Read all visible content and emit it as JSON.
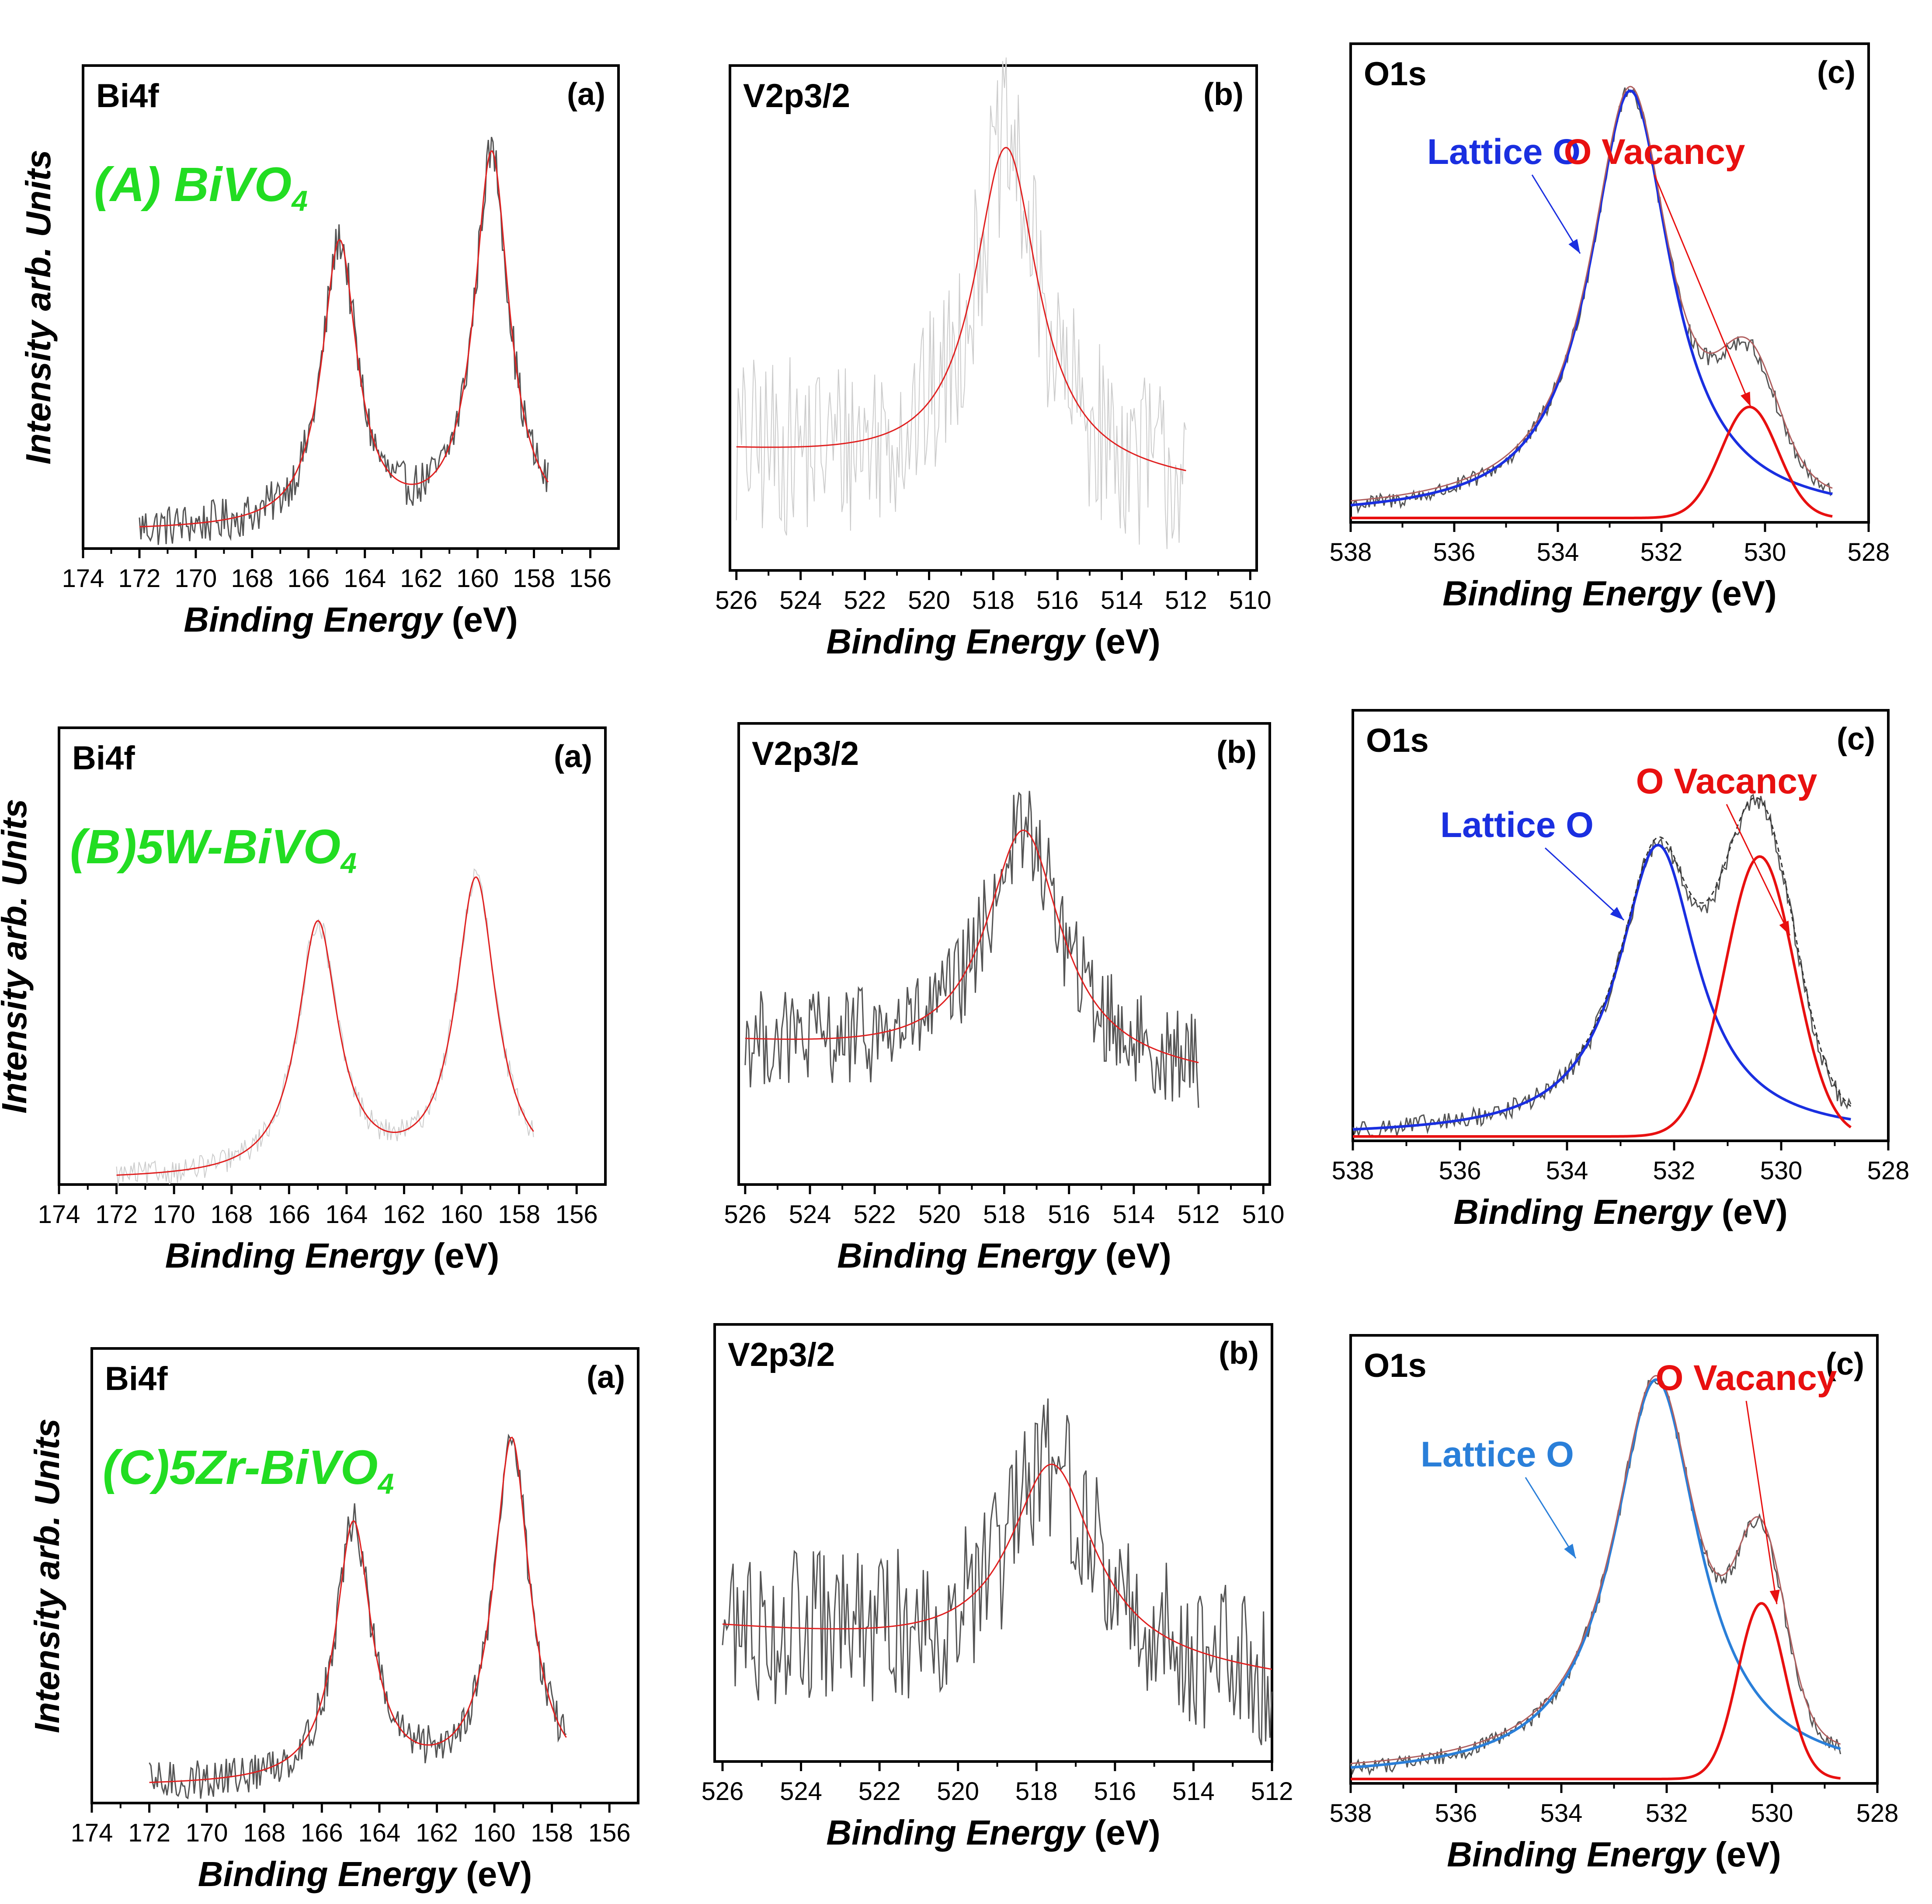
{
  "figure": {
    "colors": {
      "data": "#555555",
      "fit": "#e02020",
      "lattice": "#1a2fe0",
      "lattice_c": "#2a7fd9",
      "vacancy": "#e81010",
      "label": "#22dd22",
      "frame": "#000000"
    },
    "y_axis_label": "Intensity arb. Units",
    "x_axis_label_main": "Binding Energy",
    "x_axis_label_unit": "(eV)"
  },
  "chart_data": [
    {
      "id": "A-a",
      "type": "line",
      "row": "A",
      "col": "a",
      "title": "Bi4f",
      "panel_letter": "(a)",
      "sample": "(A) BiVO",
      "sample_sub": "4",
      "xlabel": "Binding Energy",
      "xunit": "(eV)",
      "ylabel": "Intensity arb. Units",
      "xlim": [
        174,
        155
      ],
      "ylim": [
        0,
        1.1
      ],
      "xticks": [
        174,
        172,
        170,
        168,
        166,
        164,
        162,
        160,
        158,
        156
      ],
      "noise": 0.05,
      "raw_range": [
        172,
        157.5
      ],
      "series": [
        {
          "name": "Raw data",
          "style": "raw"
        },
        {
          "name": "Fit",
          "style": "fit",
          "baseline": [
            0.03,
            0.03
          ],
          "peaks": [
            {
              "center": 164.9,
              "height": 0.66,
              "width": 0.75
            },
            {
              "center": 159.5,
              "height": 0.87,
              "width": 0.75
            }
          ],
          "range": [
            172,
            157.5
          ]
        }
      ]
    },
    {
      "id": "A-b",
      "type": "line",
      "row": "A",
      "col": "b",
      "title": "V2p3/2",
      "panel_letter": "(b)",
      "xlabel": "Binding Energy",
      "xunit": "(eV)",
      "xlim": [
        526.2,
        509.8
      ],
      "ylim": [
        0,
        1.1
      ],
      "xticks": [
        526,
        524,
        522,
        520,
        518,
        516,
        514,
        512,
        510
      ],
      "noise": 0.2,
      "raw_range": [
        526,
        512
      ],
      "series": [
        {
          "name": "Raw data",
          "style": "raw-faint"
        },
        {
          "name": "Fit",
          "style": "fit",
          "baseline": [
            0.25,
            0.18
          ],
          "peaks": [
            {
              "center": 517.6,
              "height": 0.72,
              "width": 1.2
            }
          ],
          "range": [
            526,
            512
          ]
        }
      ]
    },
    {
      "id": "A-c",
      "type": "line",
      "row": "A",
      "col": "c",
      "title": "O1s",
      "panel_letter": "(c)",
      "xlabel": "Binding Energy",
      "xunit": "(eV)",
      "xlim": [
        538,
        528
      ],
      "ylim": [
        0,
        1.1
      ],
      "xticks": [
        538,
        536,
        534,
        532,
        530,
        528
      ],
      "noise": 0.02,
      "raw_range": [
        538,
        528.7
      ],
      "annotations": [
        {
          "text": "Lattice O",
          "color": "lattice"
        },
        {
          "text": "O Vacancy",
          "color": "vacancy"
        }
      ],
      "series": [
        {
          "name": "Raw data",
          "style": "raw"
        },
        {
          "name": "Lattice O",
          "style": "lattice",
          "baseline": [
            0.0,
            0.0
          ],
          "peaks": [
            {
              "center": 532.6,
              "height": 1.0,
              "width": 0.95
            }
          ],
          "range": [
            538,
            528.7
          ]
        },
        {
          "name": "O Vacancy",
          "style": "vacancy",
          "baseline": [
            0.0,
            0.0
          ],
          "peaks": [
            {
              "center": 530.3,
              "height": 0.26,
              "width": 0.55,
              "gauss": true
            }
          ],
          "range": [
            538,
            528.7
          ]
        },
        {
          "name": "Envelope",
          "style": "envelope",
          "range": [
            538,
            528.7
          ]
        }
      ]
    },
    {
      "id": "B-a",
      "type": "line",
      "row": "B",
      "col": "a",
      "title": "Bi4f",
      "panel_letter": "(a)",
      "sample": "(B)5W-BiVO",
      "sample_sub": "4",
      "xlabel": "Binding Energy",
      "xunit": "(eV)",
      "ylabel": "Intensity arb. Units",
      "xlim": [
        174,
        155
      ],
      "ylim": [
        0,
        1.1
      ],
      "xticks": [
        174,
        172,
        170,
        168,
        166,
        164,
        162,
        160,
        158,
        156
      ],
      "noise": 0.03,
      "raw_range": [
        172,
        157.5
      ],
      "series": [
        {
          "name": "Raw data",
          "style": "raw-faint"
        },
        {
          "name": "Fit",
          "style": "fit",
          "baseline": [
            0.0,
            0.0
          ],
          "peaks": [
            {
              "center": 165.0,
              "height": 0.62,
              "width": 0.85
            },
            {
              "center": 159.5,
              "height": 0.73,
              "width": 0.85
            }
          ],
          "range": [
            172,
            157.5
          ]
        }
      ]
    },
    {
      "id": "B-b",
      "type": "line",
      "row": "B",
      "col": "b",
      "title": "V2p3/2",
      "panel_letter": "(b)",
      "xlabel": "Binding Energy",
      "xunit": "(eV)",
      "xlim": [
        526.2,
        509.8
      ],
      "ylim": [
        0,
        1.1
      ],
      "xticks": [
        526,
        524,
        522,
        520,
        518,
        516,
        514,
        512,
        510
      ],
      "noise": 0.12,
      "raw_range": [
        526,
        512
      ],
      "series": [
        {
          "name": "Raw data",
          "style": "raw"
        },
        {
          "name": "Fit",
          "style": "fit",
          "baseline": [
            0.33,
            0.25
          ],
          "peaks": [
            {
              "center": 517.4,
              "height": 0.57,
              "width": 1.4
            }
          ],
          "range": [
            526,
            512
          ]
        }
      ]
    },
    {
      "id": "B-c",
      "type": "line",
      "row": "B",
      "col": "c",
      "title": "O1s",
      "panel_letter": "(c)",
      "xlabel": "Binding Energy",
      "xunit": "(eV)",
      "xlim": [
        538,
        528
      ],
      "ylim": [
        0,
        1.1
      ],
      "xticks": [
        538,
        536,
        534,
        532,
        530,
        528
      ],
      "noise": 0.025,
      "raw_range": [
        538,
        528.7
      ],
      "annotations": [
        {
          "text": "Lattice  O",
          "color": "lattice"
        },
        {
          "text": "O Vacancy",
          "color": "vacancy"
        }
      ],
      "series": [
        {
          "name": "Raw data",
          "style": "raw"
        },
        {
          "name": "Lattice O",
          "style": "lattice",
          "baseline": [
            0.0,
            0.0
          ],
          "peaks": [
            {
              "center": 532.3,
              "height": 0.76,
              "width": 0.9
            }
          ],
          "range": [
            538,
            528.7
          ]
        },
        {
          "name": "O Vacancy",
          "style": "vacancy",
          "baseline": [
            0.0,
            0.0
          ],
          "peaks": [
            {
              "center": 530.4,
              "height": 0.73,
              "width": 0.65,
              "gauss": true
            }
          ],
          "range": [
            538,
            528.7
          ]
        },
        {
          "name": "Envelope",
          "style": "envelope-dash",
          "range": [
            533.8,
            528.7
          ]
        }
      ]
    },
    {
      "id": "C-a",
      "type": "line",
      "row": "C",
      "col": "a",
      "title": "Bi4f",
      "panel_letter": "(a)",
      "sample": "(C)5Zr-BiVO",
      "sample_sub": "4",
      "xlabel": "Binding Energy",
      "xunit": "(eV)",
      "ylabel": "Intensity arb. Units",
      "xlim": [
        174,
        155
      ],
      "ylim": [
        0,
        1.1
      ],
      "xticks": [
        174,
        172,
        170,
        168,
        166,
        164,
        162,
        160,
        158,
        156
      ],
      "noise": 0.05,
      "raw_range": [
        172,
        157.5
      ],
      "series": [
        {
          "name": "Raw data",
          "style": "raw"
        },
        {
          "name": "Fit",
          "style": "fit",
          "baseline": [
            0.03,
            0.03
          ],
          "peaks": [
            {
              "center": 164.9,
              "height": 0.64,
              "width": 0.75
            },
            {
              "center": 159.4,
              "height": 0.85,
              "width": 0.75
            }
          ],
          "range": [
            172,
            157.5
          ]
        }
      ]
    },
    {
      "id": "C-b",
      "type": "line",
      "row": "C",
      "col": "b",
      "title": "V2p3/2",
      "panel_letter": "(b)",
      "xlabel": "Binding Energy",
      "xunit": "(eV)",
      "xlim": [
        526.2,
        512
      ],
      "ylim": [
        0,
        1.1
      ],
      "xticks": [
        526,
        524,
        522,
        520,
        518,
        516,
        514,
        512
      ],
      "noise": 0.2,
      "raw_range": [
        526,
        512
      ],
      "series": [
        {
          "name": "Raw data",
          "style": "raw"
        },
        {
          "name": "Fit",
          "style": "fit",
          "baseline": [
            0.33,
            0.2
          ],
          "peaks": [
            {
              "center": 517.6,
              "height": 0.5,
              "width": 1.3
            }
          ],
          "range": [
            526,
            512
          ]
        }
      ]
    },
    {
      "id": "C-c",
      "type": "line",
      "row": "C",
      "col": "c",
      "title": "O1s",
      "panel_letter": "(c)",
      "xlabel": "Binding Energy",
      "xunit": "(eV)",
      "xlim": [
        538,
        528
      ],
      "ylim": [
        0,
        1.1
      ],
      "xticks": [
        538,
        536,
        534,
        532,
        530,
        528
      ],
      "noise": 0.02,
      "raw_range": [
        538,
        528.7
      ],
      "annotations": [
        {
          "text": "Lattice O",
          "color": "lattice_c"
        },
        {
          "text": "O Vacancy",
          "color": "vacancy"
        }
      ],
      "series": [
        {
          "name": "Raw data",
          "style": "raw"
        },
        {
          "name": "Lattice O",
          "style": "lattice_c",
          "baseline": [
            0.0,
            0.0
          ],
          "peaks": [
            {
              "center": 532.2,
              "height": 1.0,
              "width": 1.0
            }
          ],
          "range": [
            538,
            528.7
          ]
        },
        {
          "name": "O Vacancy",
          "style": "vacancy",
          "baseline": [
            0.0,
            0.0
          ],
          "peaks": [
            {
              "center": 530.2,
              "height": 0.44,
              "width": 0.45,
              "gauss": true
            }
          ],
          "range": [
            538,
            528.7
          ]
        },
        {
          "name": "Envelope",
          "style": "envelope",
          "range": [
            538,
            528.7
          ]
        }
      ]
    }
  ]
}
